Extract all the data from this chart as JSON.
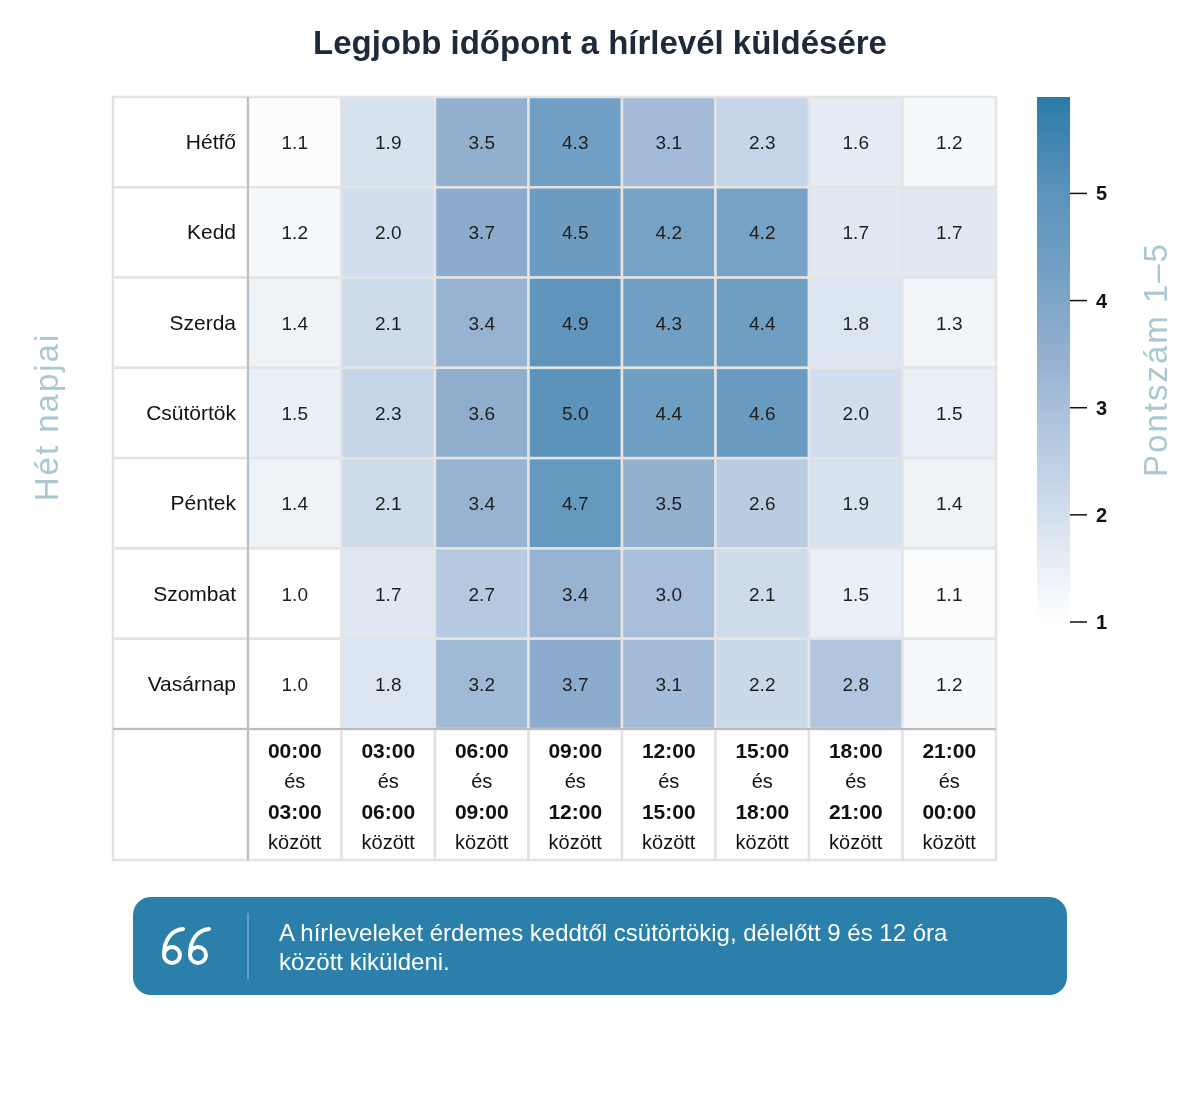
{
  "chart_data": {
    "type": "heatmap",
    "title": "Legjobb időpont a hírlevél küldésére",
    "ylabel": "Hét napjai",
    "clabel": "Pontszám 1–5",
    "categories": [
      "00:00 és 03:00 között",
      "03:00 és 06:00 között",
      "06:00 és 09:00 között",
      "09:00 és 12:00 között",
      "12:00 és 15:00 között",
      "15:00 és 18:00 között",
      "18:00 és 21:00 között",
      "21:00 és 00:00 között"
    ],
    "y_categories": [
      "Hétfő",
      "Kedd",
      "Szerda",
      "Csütörtök",
      "Péntek",
      "Szombat",
      "Vasárnap"
    ],
    "cells": [
      [
        1.1,
        1.9,
        3.5,
        4.3,
        3.1,
        2.3,
        1.6,
        1.2
      ],
      [
        1.2,
        2.0,
        3.7,
        4.5,
        4.2,
        4.2,
        1.7,
        1.7
      ],
      [
        1.4,
        2.1,
        3.4,
        4.9,
        4.3,
        4.4,
        1.8,
        1.3
      ],
      [
        1.5,
        2.3,
        3.6,
        5.0,
        4.4,
        4.6,
        2.0,
        1.5
      ],
      [
        1.4,
        2.1,
        3.4,
        4.7,
        3.5,
        2.6,
        1.9,
        1.4
      ],
      [
        1.0,
        1.7,
        2.7,
        3.4,
        3.0,
        2.1,
        1.5,
        1.1
      ],
      [
        1.0,
        1.8,
        3.2,
        3.7,
        3.1,
        2.2,
        2.8,
        1.2
      ]
    ],
    "cell_labels": [
      [
        "1.1",
        "1.9",
        "3.5",
        "4.3",
        "3.1",
        "2.3",
        "1.6",
        "1.2"
      ],
      [
        "1.2",
        "2.0",
        "3.7",
        "4.5",
        "4.2",
        "4.2",
        "1.7",
        "1.7"
      ],
      [
        "1.4",
        "2.1",
        "3.4",
        "4.9",
        "4.3",
        "4.4",
        "1.8",
        "1.3"
      ],
      [
        "1.5",
        "2.3",
        "3.6",
        "5.0",
        "4.4",
        "4.6",
        "2.0",
        "1.5"
      ],
      [
        "1.4",
        "2.1",
        "3.4",
        "4.7",
        "3.5",
        "2.6",
        "1.9",
        "1.4"
      ],
      [
        "1.0",
        "1.7",
        "2.7",
        "3.4",
        "3.0",
        "2.1",
        "1.5",
        "1.1"
      ],
      [
        "1.0",
        "1.8",
        "3.2",
        "3.7",
        "3.1",
        "2.2",
        "2.8",
        "1.2"
      ]
    ],
    "clim": [
      1,
      5.9
    ],
    "cticks": [
      1,
      2,
      3,
      4,
      5
    ],
    "annotations": [
      "A hírleveleket érdemes keddtől csütörtökig, délelőtt 9 és 12 óra között kiküldeni."
    ]
  }
}
